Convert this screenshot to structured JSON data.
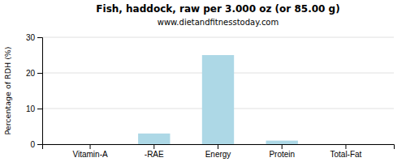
{
  "chart_data": {
    "type": "bar",
    "title": "Fish, haddock, raw per 3.000 oz (or 85.00 g)",
    "subtitle": "www.dietandfitnesstoday.com",
    "ylabel": "Percentage of RDH (%)",
    "categories": [
      "Vitamin-A",
      "-RAE",
      "Energy",
      "Protein",
      "Total-Fat"
    ],
    "values": [
      0,
      3.0,
      25.0,
      1.0,
      0
    ],
    "color": "#add8e6",
    "ylim": [
      0,
      30
    ],
    "yticks": [
      0,
      10,
      20,
      30
    ],
    "grid": true
  }
}
